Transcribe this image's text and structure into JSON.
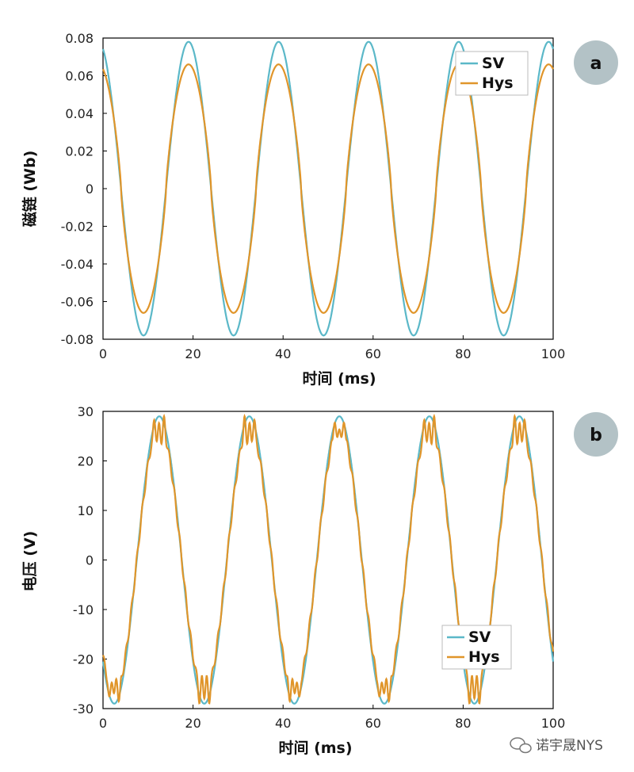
{
  "chart_data": [
    {
      "type": "line",
      "badge": "a",
      "xlabel": "时间 (ms)",
      "ylabel": "磁链 (Wb)",
      "xlim": [
        0,
        100
      ],
      "ylim": [
        -0.08,
        0.08
      ],
      "xticks": [
        "0",
        "20",
        "40",
        "60",
        "80",
        "100"
      ],
      "yticks": [
        "0.08",
        "0.06",
        "0.04",
        "0.02",
        "0",
        "-0.02",
        "-0.04",
        "-0.06",
        "-0.08"
      ],
      "legend_position": "top-right",
      "grid": false,
      "series": [
        {
          "name": "SV",
          "color": "#5bb8c8",
          "amplitude": 0.078,
          "period_ms": 20,
          "peak_at_ms": 19
        },
        {
          "name": "Hys",
          "color": "#e0952a",
          "amplitude": 0.066,
          "period_ms": 20,
          "peak_at_ms": 19
        }
      ]
    },
    {
      "type": "line",
      "badge": "b",
      "xlabel": "时间 (ms)",
      "ylabel": "电压 (V)",
      "xlim": [
        0,
        100
      ],
      "ylim": [
        -30,
        30
      ],
      "xticks": [
        "0",
        "20",
        "40",
        "60",
        "80",
        "100"
      ],
      "yticks": [
        "30",
        "20",
        "10",
        "0",
        "-10",
        "-20",
        "-30"
      ],
      "legend_position": "bottom-right",
      "grid": false,
      "series": [
        {
          "name": "SV",
          "color": "#5bb8c8",
          "peak": 29,
          "period_ms": 20,
          "peak_at_ms": 12.5,
          "trough_at_ms": 2.5
        },
        {
          "name": "Hys",
          "color": "#e0952a",
          "peak": 28,
          "period_ms": 20,
          "peak_at_ms": 12.5,
          "trough_at_ms": 2.5
        }
      ]
    }
  ],
  "watermark": "诺宇晟NYS"
}
